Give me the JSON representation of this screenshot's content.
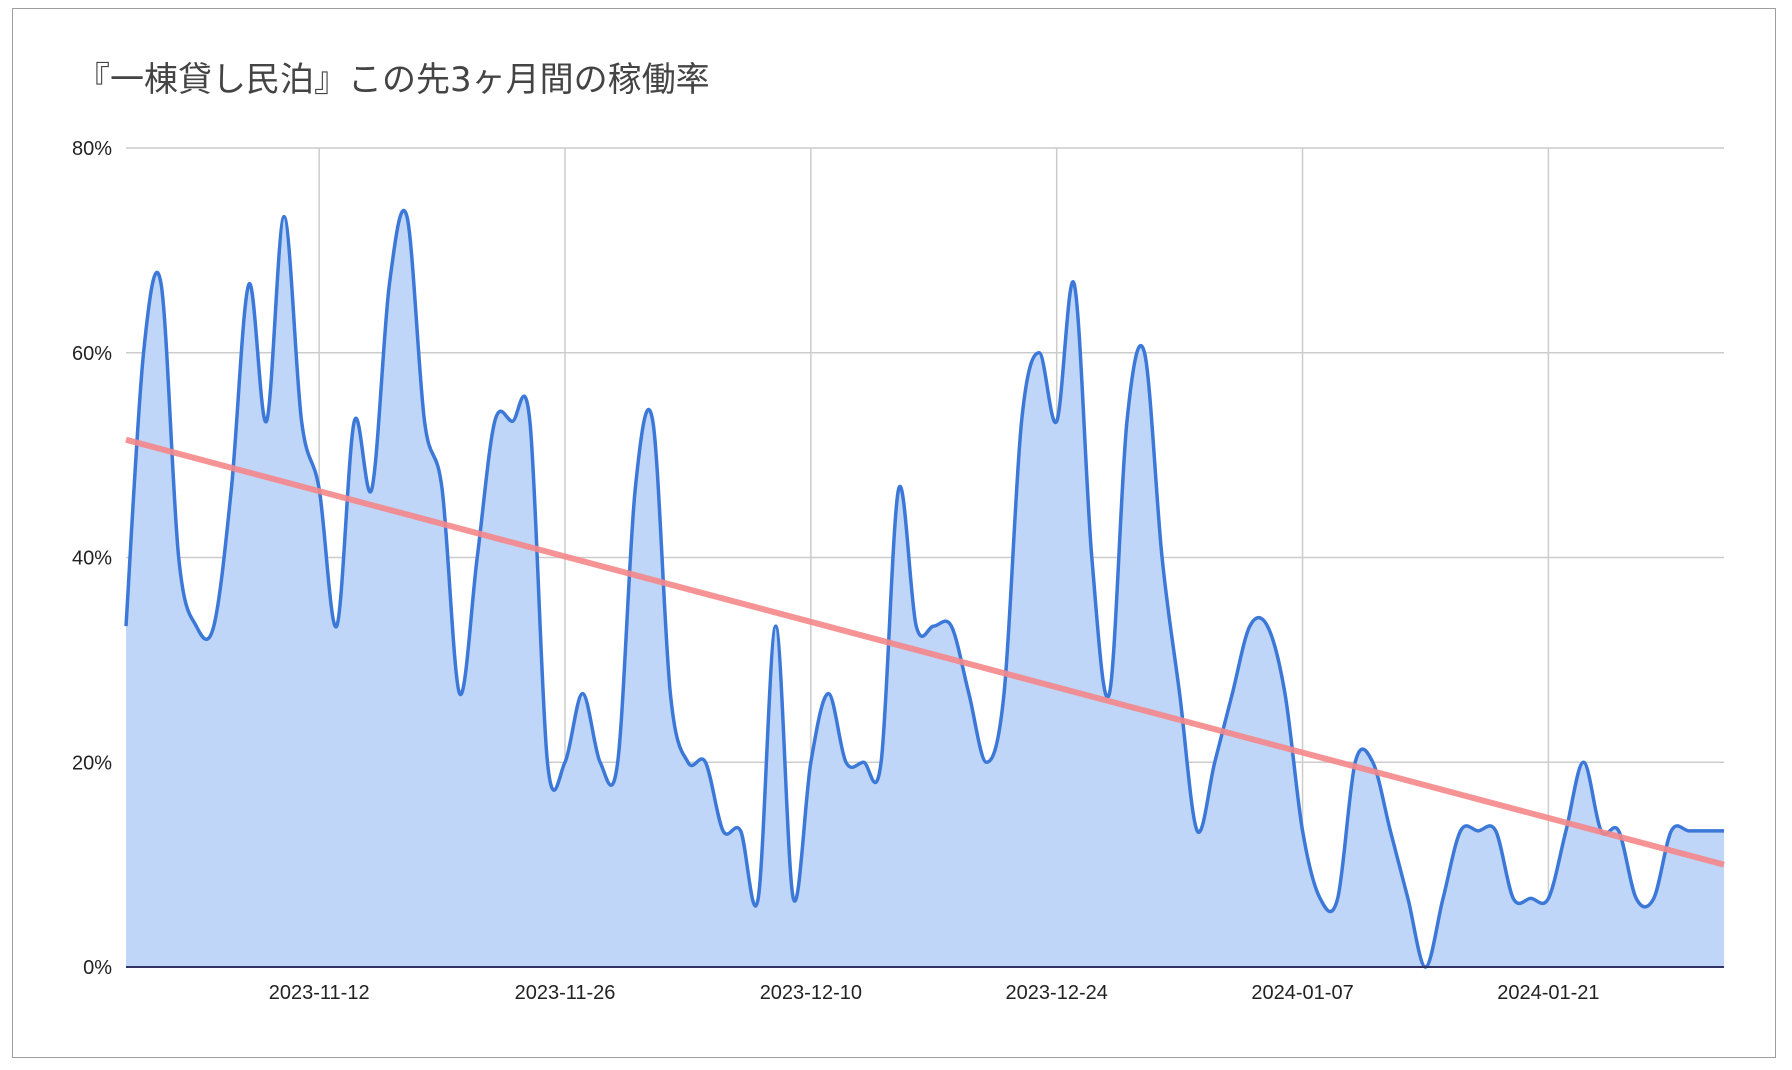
{
  "chart_data": {
    "type": "area",
    "title": "『一棟貸し民泊』この先3ヶ月間の稼働率",
    "xlabel": "",
    "ylabel": "",
    "ylim": [
      0,
      80
    ],
    "yticks": [
      0,
      20,
      40,
      60,
      80
    ],
    "y_tick_labels": [
      "0%",
      "20%",
      "40%",
      "60%",
      "80%"
    ],
    "xlim": [
      "2023-11-01",
      "2024-01-31"
    ],
    "x_tick_labels": [
      "2023-11-12",
      "2023-11-26",
      "2023-12-10",
      "2023-12-24",
      "2024-01-07",
      "2024-01-21"
    ],
    "grid": true,
    "legend": "none",
    "colors": {
      "line": "#3c78d8",
      "fill": "#c0d6f8",
      "trend": "#f4878a",
      "grid": "#cccccc",
      "baseline": "#333366"
    },
    "series": [
      {
        "x": [
          "2023-11-01",
          "2023-11-02",
          "2023-11-03",
          "2023-11-04",
          "2023-11-05",
          "2023-11-06",
          "2023-11-07",
          "2023-11-08",
          "2023-11-09",
          "2023-11-10",
          "2023-11-11",
          "2023-11-12",
          "2023-11-13",
          "2023-11-14",
          "2023-11-15",
          "2023-11-16",
          "2023-11-17",
          "2023-11-18",
          "2023-11-19",
          "2023-11-20",
          "2023-11-21",
          "2023-11-22",
          "2023-11-23",
          "2023-11-24",
          "2023-11-25",
          "2023-11-26",
          "2023-11-27",
          "2023-11-28",
          "2023-11-29",
          "2023-11-30",
          "2023-12-01",
          "2023-12-02",
          "2023-12-03",
          "2023-12-04",
          "2023-12-05",
          "2023-12-06",
          "2023-12-07",
          "2023-12-08",
          "2023-12-09",
          "2023-12-10",
          "2023-12-11",
          "2023-12-12",
          "2023-12-13",
          "2023-12-14",
          "2023-12-15",
          "2023-12-16",
          "2023-12-17",
          "2023-12-18",
          "2023-12-19",
          "2023-12-20",
          "2023-12-21",
          "2023-12-22",
          "2023-12-23",
          "2023-12-24",
          "2023-12-25",
          "2023-12-26",
          "2023-12-27",
          "2023-12-28",
          "2023-12-29",
          "2023-12-30",
          "2023-12-31",
          "2024-01-01",
          "2024-01-02",
          "2024-01-03",
          "2024-01-04",
          "2024-01-05",
          "2024-01-06",
          "2024-01-07",
          "2024-01-08",
          "2024-01-09",
          "2024-01-10",
          "2024-01-11",
          "2024-01-12",
          "2024-01-13",
          "2024-01-14",
          "2024-01-15",
          "2024-01-16",
          "2024-01-17",
          "2024-01-18",
          "2024-01-19",
          "2024-01-20",
          "2024-01-21",
          "2024-01-22",
          "2024-01-23",
          "2024-01-24",
          "2024-01-25",
          "2024-01-26",
          "2024-01-27",
          "2024-01-28",
          "2024-01-29",
          "2024-01-30",
          "2024-01-31"
        ],
        "values": [
          33.3,
          60.0,
          66.7,
          40.0,
          33.3,
          33.3,
          46.7,
          66.7,
          53.3,
          73.3,
          53.3,
          46.7,
          33.3,
          53.3,
          46.7,
          66.7,
          73.3,
          53.3,
          46.7,
          26.7,
          40.0,
          53.3,
          53.3,
          53.3,
          20.0,
          20.0,
          26.7,
          20.0,
          20.0,
          46.7,
          53.3,
          26.7,
          20.0,
          20.0,
          13.3,
          13.3,
          6.7,
          33.3,
          6.7,
          20.0,
          26.7,
          20.0,
          20.0,
          20.0,
          46.7,
          33.3,
          33.3,
          33.3,
          26.7,
          20.0,
          26.7,
          53.3,
          60.0,
          53.3,
          66.7,
          40.0,
          26.7,
          53.3,
          60.0,
          40.0,
          26.7,
          13.3,
          20.0,
          26.7,
          33.3,
          33.3,
          26.7,
          13.3,
          6.7,
          6.7,
          20.0,
          20.0,
          13.3,
          6.7,
          0.0,
          6.7,
          13.3,
          13.3,
          13.3,
          6.7,
          6.7,
          6.7,
          13.3,
          20.0,
          13.3,
          13.3,
          6.7,
          6.7,
          13.3,
          13.3,
          13.3,
          13.3
        ]
      }
    ],
    "trendline": {
      "type": "linear",
      "start": 51.5,
      "end": 10.0
    }
  }
}
